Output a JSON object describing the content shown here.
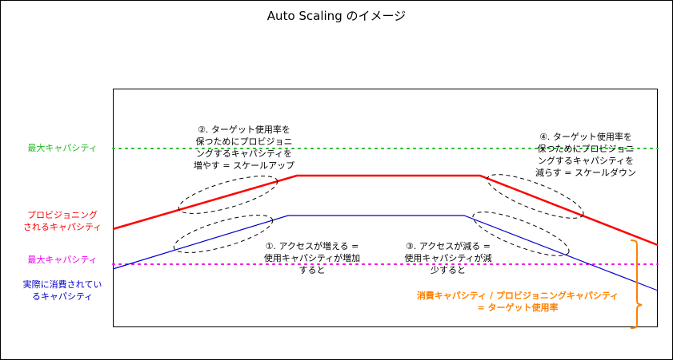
{
  "title": "Auto Scaling のイメージ",
  "side_labels": {
    "max_capacity_top": "最大キャパシティ",
    "provisioned": "プロビジョニング\nされるキャパシティ",
    "max_capacity_bottom": "最大キャパシティ",
    "consumed": "実際に消費されてい\nるキャパシティ"
  },
  "annotations": {
    "scale_up": "②. ターゲット使用率を\n保つためにプロビジョニ\nングするキャパシティを\n増やす = スケールアップ",
    "access_up": "①. アクセスが増える =\n使用キャパシティが増加\nすると",
    "access_down": "③. アクセスが減る =\n使用キャパシティが減\n少すると",
    "scale_down": "④. ターゲット使用率を\n保つためにプロビジョニ\nングするキャパシティを\n減らす = スケールダウン"
  },
  "formula": "消費キャパシティ / プロビジョニングキャパシティ\n= ターゲット使用率",
  "colors": {
    "max_top": "#22bb22",
    "provisioned": "#ff0000",
    "max_bottom": "#ee00ee",
    "consumed": "#0000cc",
    "formula": "#ff8000"
  }
}
